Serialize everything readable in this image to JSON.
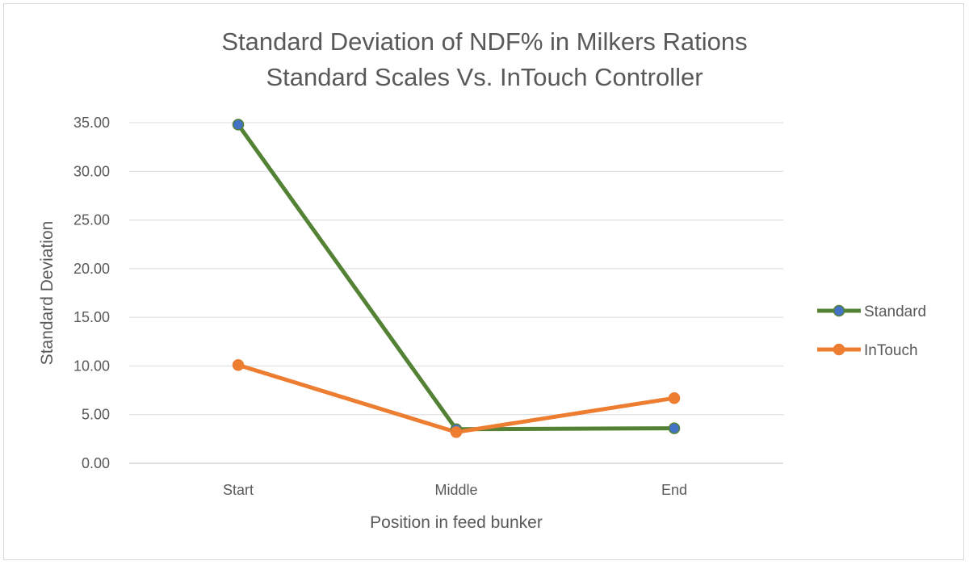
{
  "chart_data": {
    "type": "line",
    "title": [
      "Standard Deviation of NDF% in Milkers Rations",
      "Standard Scales Vs. InTouch Controller"
    ],
    "xlabel": "Position in feed bunker",
    "ylabel": "Standard Deviation",
    "categories": [
      "Start",
      "Middle",
      "End"
    ],
    "ylim": [
      0,
      35
    ],
    "yticks": [
      "0.00",
      "5.00",
      "10.00",
      "15.00",
      "20.00",
      "25.00",
      "30.00",
      "35.00"
    ],
    "grid": true,
    "legend_position": "right",
    "series": [
      {
        "name": "Standard",
        "values": [
          34.8,
          3.5,
          3.6
        ],
        "line_color": "#548235",
        "marker_color": "#4472c4"
      },
      {
        "name": "InTouch",
        "values": [
          10.1,
          3.2,
          6.7
        ],
        "line_color": "#ed7d31",
        "marker_color": "#ed7d31"
      }
    ]
  }
}
